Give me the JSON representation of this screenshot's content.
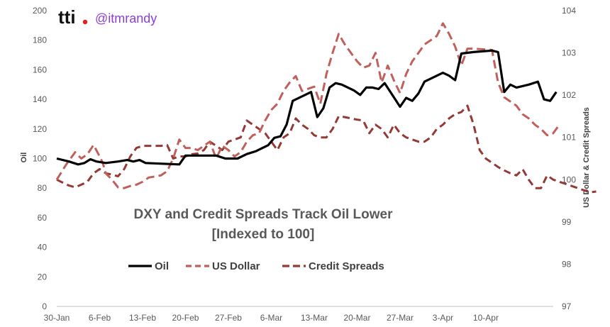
{
  "brand": {
    "logo": "tti",
    "logo_dot_color": "#e02020",
    "handle": "@itmrandy",
    "handle_color": "#8b3fd9"
  },
  "chart_data": {
    "type": "line",
    "title_lines": [
      "DXY and Credit Spreads Track Oil Lower",
      "[Indexed to 100]"
    ],
    "ylabel_left": "Oil",
    "ylabel_right": "US Dollar & Credit Spreads",
    "x_tick_labels": [
      "30-Jan",
      "6-Feb",
      "13-Feb",
      "20-Feb",
      "27-Feb",
      "6-Mar",
      "13-Mar",
      "20-Mar",
      "27-Mar",
      "3-Apr",
      "10-Apr"
    ],
    "x_range_days": [
      0,
      81
    ],
    "y_left": {
      "min": 0,
      "max": 200,
      "ticks": [
        0,
        20,
        40,
        60,
        80,
        100,
        120,
        140,
        160,
        180,
        200
      ]
    },
    "y_right": {
      "min": 97,
      "max": 104,
      "ticks": [
        97,
        98,
        99,
        100,
        101,
        102,
        103,
        104
      ]
    },
    "legend_position": "center",
    "grid": false,
    "series": [
      {
        "name": "Oil",
        "axis": "left",
        "color": "#000000",
        "dash": "solid",
        "points": [
          [
            0,
            100
          ],
          [
            2,
            98
          ],
          [
            3.5,
            96
          ],
          [
            4.5,
            97
          ],
          [
            5.5,
            99.5
          ],
          [
            6.5,
            98
          ],
          [
            8,
            97
          ],
          [
            10,
            98
          ],
          [
            11.5,
            99
          ],
          [
            12.5,
            98
          ],
          [
            13.5,
            99
          ],
          [
            14.5,
            97
          ],
          [
            20,
            96
          ],
          [
            21,
            102
          ],
          [
            23,
            102
          ],
          [
            26,
            102
          ],
          [
            27.5,
            100
          ],
          [
            29.5,
            100
          ],
          [
            31,
            103
          ],
          [
            32.5,
            105
          ],
          [
            34.5,
            109
          ],
          [
            35.5,
            114
          ],
          [
            36.5,
            115
          ],
          [
            37.5,
            123
          ],
          [
            38.5,
            139
          ],
          [
            40,
            142
          ],
          [
            41.5,
            145
          ],
          [
            42.5,
            128
          ],
          [
            43.5,
            134
          ],
          [
            44.5,
            148
          ],
          [
            45.5,
            151
          ],
          [
            46.5,
            150
          ],
          [
            48.5,
            146
          ],
          [
            49.5,
            143
          ],
          [
            50.5,
            148
          ],
          [
            51.5,
            148
          ],
          [
            52.5,
            147
          ],
          [
            53.5,
            151
          ],
          [
            56,
            135
          ],
          [
            57,
            141
          ],
          [
            58,
            139
          ],
          [
            59,
            144
          ],
          [
            60,
            152
          ],
          [
            61.5,
            155
          ],
          [
            63,
            158
          ],
          [
            64,
            156
          ],
          [
            65,
            153
          ],
          [
            66,
            171
          ],
          [
            68,
            172
          ],
          [
            71,
            173
          ],
          [
            72,
            172
          ],
          [
            73,
            145
          ],
          [
            74,
            150
          ],
          [
            75,
            148
          ],
          [
            77,
            150
          ],
          [
            78.5,
            152
          ],
          [
            79.5,
            140
          ],
          [
            80.5,
            139
          ],
          [
            81.5,
            145
          ]
        ]
      },
      {
        "name": "US Dollar",
        "axis": "right",
        "color": "#c0605c",
        "dash": "medium",
        "points": [
          [
            0,
            100
          ],
          [
            1.5,
            100.35
          ],
          [
            3,
            100.65
          ],
          [
            4,
            100.5
          ],
          [
            5,
            100.6
          ],
          [
            6,
            100.82
          ],
          [
            7,
            100.55
          ],
          [
            7.5,
            100.4
          ],
          [
            8,
            100.15
          ],
          [
            9,
            100
          ],
          [
            10,
            99.82
          ],
          [
            11,
            99.8
          ],
          [
            12,
            99.85
          ],
          [
            13,
            99.88
          ],
          [
            14,
            99.95
          ],
          [
            15,
            100.05
          ],
          [
            17,
            100.1
          ],
          [
            18,
            100.2
          ],
          [
            19,
            100.5
          ],
          [
            20,
            100.95
          ],
          [
            21,
            100.75
          ],
          [
            22,
            100.75
          ],
          [
            23,
            100.7
          ],
          [
            24,
            100.8
          ],
          [
            25,
            100.9
          ],
          [
            26,
            100.5
          ],
          [
            27,
            100.8
          ],
          [
            28,
            100.7
          ],
          [
            29,
            100.55
          ],
          [
            30,
            100.65
          ],
          [
            31,
            100.9
          ],
          [
            32,
            101.05
          ],
          [
            33,
            101.1
          ],
          [
            34,
            101.4
          ],
          [
            35,
            101.65
          ],
          [
            36,
            101.8
          ],
          [
            37,
            102.1
          ],
          [
            38,
            102.3
          ],
          [
            39,
            102.45
          ],
          [
            40,
            102.1
          ],
          [
            41,
            102.15
          ],
          [
            42,
            102.2
          ],
          [
            43,
            101.8
          ],
          [
            44,
            102.5
          ],
          [
            45,
            103.0
          ],
          [
            46,
            103.45
          ],
          [
            47,
            103.2
          ],
          [
            48,
            103
          ],
          [
            49,
            102.8
          ],
          [
            50,
            102.65
          ],
          [
            51,
            102.7
          ],
          [
            52,
            103.0
          ],
          [
            53,
            102.3
          ],
          [
            54,
            102.7
          ],
          [
            55,
            102.35
          ],
          [
            56,
            102.05
          ],
          [
            57,
            102.5
          ],
          [
            58,
            102.8
          ],
          [
            59,
            103.0
          ],
          [
            60,
            103.2
          ],
          [
            61,
            103.3
          ],
          [
            62,
            103.4
          ],
          [
            63,
            103.7
          ],
          [
            64,
            103.45
          ],
          [
            65,
            103.15
          ],
          [
            66,
            102.7
          ],
          [
            67,
            103.1
          ],
          [
            68,
            103.1
          ],
          [
            70,
            103.08
          ],
          [
            71,
            103.07
          ],
          [
            72,
            102.3
          ],
          [
            73,
            101.95
          ],
          [
            74,
            101.85
          ],
          [
            75,
            101.75
          ],
          [
            76,
            101.55
          ],
          [
            77,
            101.45
          ],
          [
            78,
            101.3
          ],
          [
            79,
            101.2
          ],
          [
            80,
            101.05
          ],
          [
            81,
            101.1
          ],
          [
            82,
            101.3
          ]
        ]
      },
      {
        "name": "Credit Spreads",
        "axis": "right",
        "color": "#943a36",
        "dash": "long",
        "points": [
          [
            0,
            100
          ],
          [
            1,
            99.93
          ],
          [
            2,
            99.86
          ],
          [
            3,
            99.82
          ],
          [
            4,
            99.88
          ],
          [
            5,
            99.95
          ],
          [
            6,
            100.15
          ],
          [
            7,
            100.25
          ],
          [
            8,
            100.15
          ],
          [
            9,
            100.12
          ],
          [
            10,
            100.08
          ],
          [
            11,
            100.25
          ],
          [
            12,
            100.55
          ],
          [
            13,
            100.75
          ],
          [
            14,
            100.8
          ],
          [
            15,
            100.8
          ],
          [
            16,
            100.8
          ],
          [
            17,
            100.8
          ],
          [
            18,
            100.82
          ],
          [
            19,
            100.5
          ],
          [
            20,
            100.55
          ],
          [
            21,
            100.55
          ],
          [
            22,
            100.6
          ],
          [
            23,
            100.62
          ],
          [
            24,
            100.7
          ],
          [
            25,
            100.9
          ],
          [
            26,
            100.8
          ],
          [
            27,
            100.7
          ],
          [
            28,
            100.9
          ],
          [
            29,
            100.95
          ],
          [
            30,
            101.0
          ],
          [
            31,
            101.4
          ],
          [
            32,
            101.3
          ],
          [
            33,
            101.2
          ],
          [
            34,
            101.1
          ],
          [
            35,
            100.9
          ],
          [
            36,
            100.7
          ],
          [
            37,
            101.0
          ],
          [
            38,
            101.1
          ],
          [
            39,
            101.45
          ],
          [
            40,
            101.3
          ],
          [
            41,
            101.2
          ],
          [
            42,
            101.05
          ],
          [
            43,
            101.0
          ],
          [
            44,
            101.0
          ],
          [
            45,
            101.2
          ],
          [
            46,
            101.5
          ],
          [
            47,
            101.48
          ],
          [
            48,
            101.45
          ],
          [
            49,
            101.42
          ],
          [
            50,
            101.4
          ],
          [
            51,
            101.1
          ],
          [
            52,
            101.3
          ],
          [
            53,
            101.2
          ],
          [
            54,
            101.0
          ],
          [
            55,
            101.3
          ],
          [
            56,
            101.1
          ],
          [
            57,
            101.0
          ],
          [
            58,
            100.95
          ],
          [
            59,
            100.9
          ],
          [
            60,
            100.9
          ],
          [
            61,
            101.0
          ],
          [
            62,
            101.2
          ],
          [
            63,
            101.3
          ],
          [
            64,
            101.45
          ],
          [
            65,
            101.55
          ],
          [
            66,
            101.6
          ],
          [
            67,
            101.75
          ],
          [
            68,
            101.3
          ],
          [
            69,
            100.7
          ],
          [
            70,
            100.5
          ],
          [
            71,
            100.4
          ],
          [
            72,
            100.3
          ],
          [
            73,
            100.22
          ],
          [
            74,
            100.15
          ],
          [
            75,
            100.1
          ],
          [
            76,
            100.25
          ],
          [
            77,
            100
          ],
          [
            78,
            99.8
          ],
          [
            79,
            99.8
          ],
          [
            80,
            100.1
          ],
          [
            81,
            100.0
          ],
          [
            82,
            99.95
          ],
          [
            83,
            99.9
          ],
          [
            84,
            99.85
          ],
          [
            85,
            99.8
          ],
          [
            86,
            99.75
          ],
          [
            87,
            99.7
          ],
          [
            88,
            99.72
          ]
        ]
      }
    ]
  }
}
